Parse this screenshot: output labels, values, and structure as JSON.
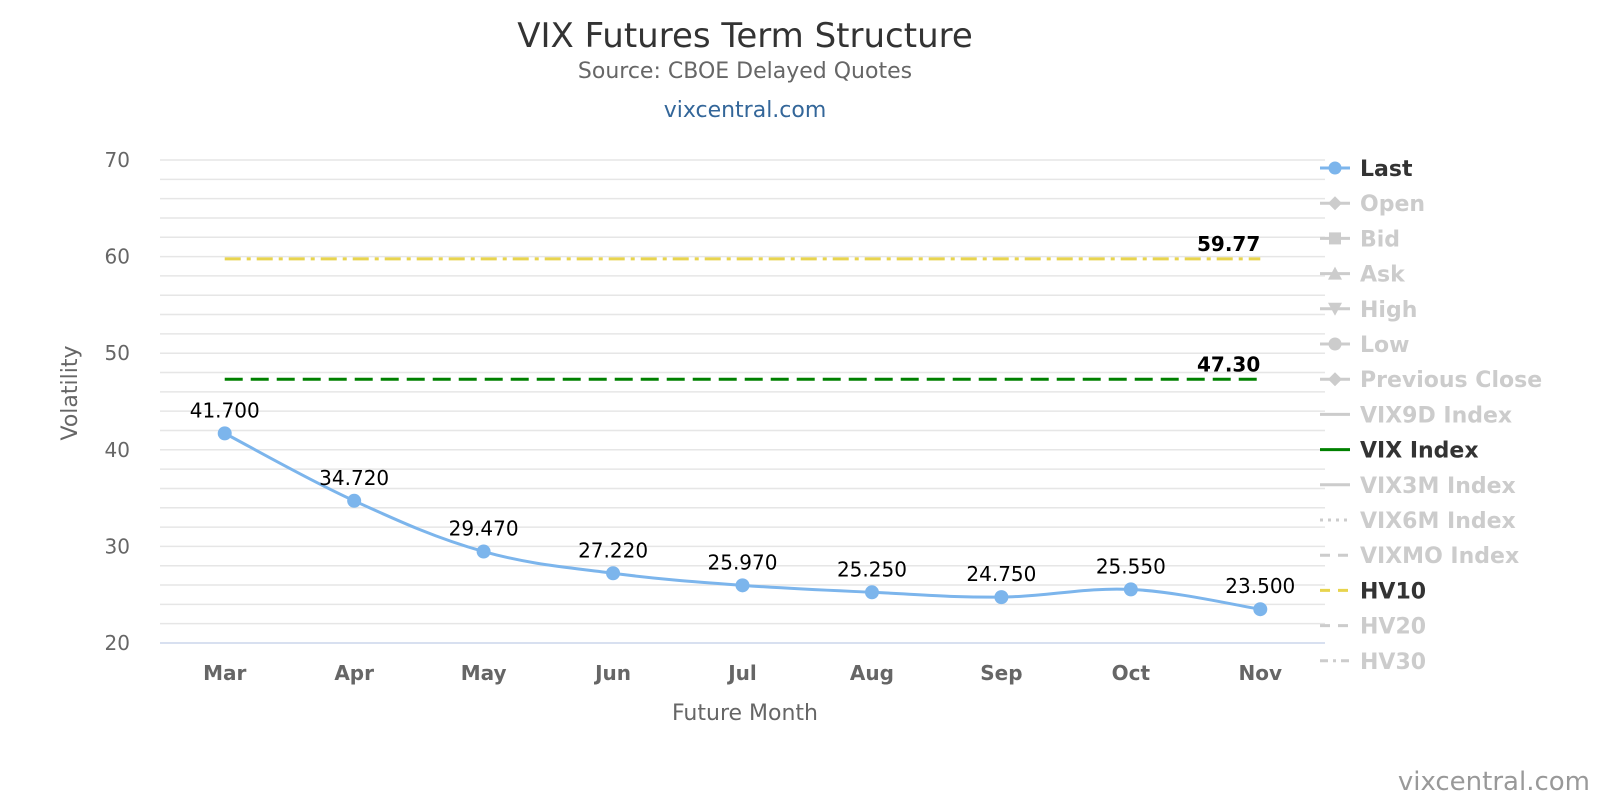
{
  "chart_data": {
    "type": "line",
    "title": "VIX Futures Term Structure",
    "subtitle": "Source: CBOE Delayed Quotes",
    "site_link": "vixcentral.com",
    "credits": "vixcentral.com",
    "xlabel": "Future Month",
    "ylabel": "Volatility",
    "ylim": [
      20,
      70
    ],
    "yticks": [
      "20",
      "30",
      "40",
      "50",
      "60",
      "70"
    ],
    "grid": true,
    "legend_position": "right",
    "categories": [
      "Mar",
      "Apr",
      "May",
      "Jun",
      "Jul",
      "Aug",
      "Sep",
      "Oct",
      "Nov"
    ],
    "series": [
      {
        "name": "Last",
        "color": "#7cb5ec",
        "values": [
          41.7,
          34.72,
          29.47,
          27.22,
          25.97,
          25.25,
          24.75,
          25.55,
          23.5
        ],
        "labels": [
          "41.700",
          "34.720",
          "29.470",
          "27.220",
          "25.970",
          "25.250",
          "24.750",
          "25.550",
          "23.500"
        ]
      }
    ],
    "reference_lines": [
      {
        "name": "VIX Index",
        "value": 47.3,
        "label": "47.30",
        "color": "#008000",
        "dash": "dash"
      },
      {
        "name": "HV10",
        "value": 59.77,
        "label": "59.77",
        "color": "#e8d44d",
        "dash": "dashdot"
      }
    ],
    "legend": [
      {
        "name": "Last",
        "active": true,
        "color": "#7cb5ec",
        "symbol": "circle",
        "line": "solid"
      },
      {
        "name": "Open",
        "active": false,
        "color": "#cccccc",
        "symbol": "diamond",
        "line": "solid"
      },
      {
        "name": "Bid",
        "active": false,
        "color": "#cccccc",
        "symbol": "square",
        "line": "solid"
      },
      {
        "name": "Ask",
        "active": false,
        "color": "#cccccc",
        "symbol": "triangle",
        "line": "solid"
      },
      {
        "name": "High",
        "active": false,
        "color": "#cccccc",
        "symbol": "triangle-down",
        "line": "solid"
      },
      {
        "name": "Low",
        "active": false,
        "color": "#cccccc",
        "symbol": "circle",
        "line": "solid"
      },
      {
        "name": "Previous Close",
        "active": false,
        "color": "#cccccc",
        "symbol": "diamond",
        "line": "solid"
      },
      {
        "name": "VIX9D Index",
        "active": false,
        "color": "#cccccc",
        "symbol": "none",
        "line": "solid"
      },
      {
        "name": "VIX Index",
        "active": true,
        "color": "#008000",
        "symbol": "none",
        "line": "solid"
      },
      {
        "name": "VIX3M Index",
        "active": false,
        "color": "#cccccc",
        "symbol": "none",
        "line": "solid"
      },
      {
        "name": "VIX6M Index",
        "active": false,
        "color": "#cccccc",
        "symbol": "none",
        "line": "dot"
      },
      {
        "name": "VIXMO Index",
        "active": false,
        "color": "#cccccc",
        "symbol": "none",
        "line": "dash"
      },
      {
        "name": "HV10",
        "active": true,
        "color": "#e8d44d",
        "symbol": "none",
        "line": "dash"
      },
      {
        "name": "HV20",
        "active": false,
        "color": "#cccccc",
        "symbol": "none",
        "line": "dash"
      },
      {
        "name": "HV30",
        "active": false,
        "color": "#cccccc",
        "symbol": "none",
        "line": "dashdot"
      }
    ],
    "colors": {
      "active_legend_text": "#333333",
      "inactive_legend_text": "#cccccc",
      "gridline": "#e6e6e6",
      "axis_line": "#ccd6eb"
    }
  }
}
